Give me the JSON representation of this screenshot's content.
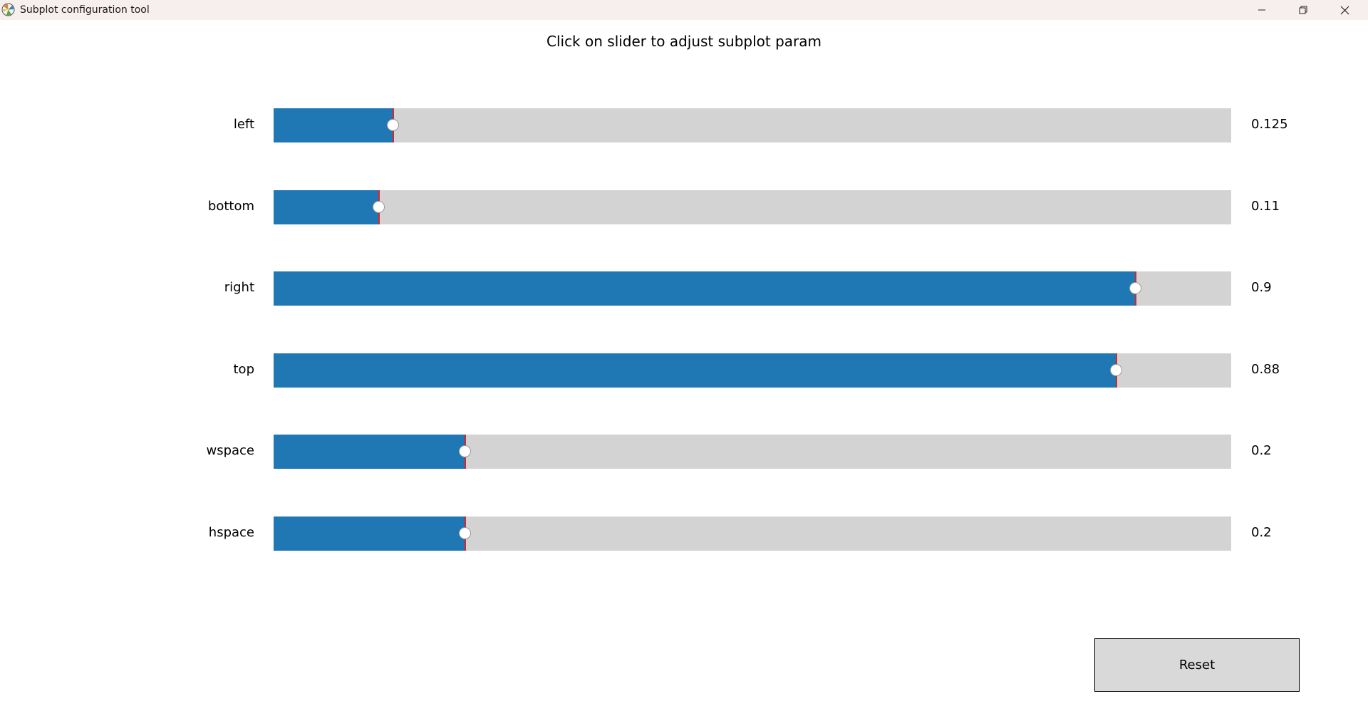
{
  "window": {
    "title": "Subplot configuration tool",
    "icon": "matplotlib-icon",
    "controls": [
      "minimize-icon",
      "restore-icon",
      "close-icon"
    ]
  },
  "figure": {
    "title": "Click on slider to adjust subplot param"
  },
  "sliders": [
    {
      "label": "left",
      "value": 0.125,
      "value_text": "0.125"
    },
    {
      "label": "bottom",
      "value": 0.11,
      "value_text": "0.11"
    },
    {
      "label": "right",
      "value": 0.9,
      "value_text": "0.9"
    },
    {
      "label": "top",
      "value": 0.88,
      "value_text": "0.88"
    },
    {
      "label": "wspace",
      "value": 0.2,
      "value_text": "0.2"
    },
    {
      "label": "hspace",
      "value": 0.2,
      "value_text": "0.2"
    }
  ],
  "reset_button": {
    "label": "Reset"
  },
  "colors": {
    "fill": "#1f77b4",
    "track": "#d3d3d3",
    "initial_marker": "#d62728",
    "titlebar": "#f7efed",
    "reset_bg": "#d9d9d9"
  }
}
